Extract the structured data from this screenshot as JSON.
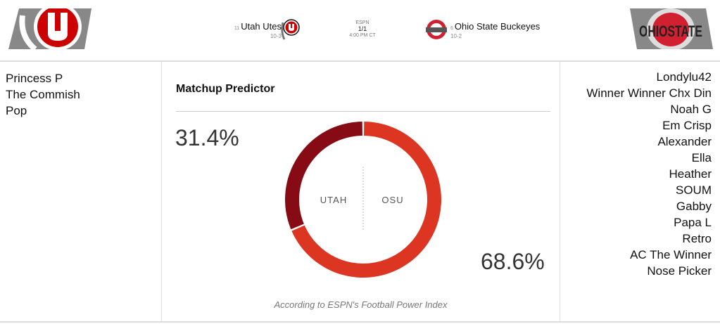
{
  "header": {
    "away": {
      "rank": "11",
      "name": "Utah Utes",
      "record": "10-3",
      "logo_icon": "utah-logo-icon",
      "color": "#cc0000"
    },
    "home": {
      "rank": "6",
      "name": "Ohio State Buckeyes",
      "record": "10-2",
      "logo_icon": "ohio-state-logo-icon",
      "logo_text": "OHIO STATE",
      "color": "#bb0000"
    },
    "network": "ESPN",
    "date": "1/1",
    "time": "4:00 PM CT"
  },
  "left_list": [
    "Princess P",
    "The Commish",
    "Pop"
  ],
  "right_list": [
    "Londylu42",
    "Winner Winner Chx Din",
    "Noah G",
    "Em Crisp",
    "Alexander",
    "Ella",
    "Heather",
    "SOUM",
    "Gabby",
    "Papa L",
    "Retro",
    "AC The Winner",
    "Nose Picker"
  ],
  "predictor": {
    "title": "Matchup Predictor",
    "away_label": "UTAH",
    "home_label": "OSU",
    "away_pct_text": "31.4%",
    "home_pct_text": "68.6%",
    "footnote": "According to ESPN's Football Power Index",
    "colors": {
      "away": "#870b14",
      "home": "#dc3522"
    }
  },
  "chart_data": {
    "type": "pie",
    "title": "Matchup Predictor",
    "categories": [
      "UTAH",
      "OSU"
    ],
    "values": [
      31.4,
      68.6
    ]
  }
}
